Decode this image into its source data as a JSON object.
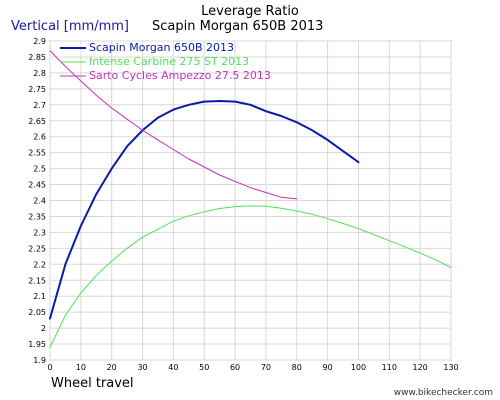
{
  "chart_data": {
    "type": "line",
    "title": "Leverage Ratio",
    "subtitle": "Scapin Morgan 650B 2013",
    "ylabel": "Vertical [mm/mm]",
    "xlabel": "Wheel travel",
    "watermark": "www.bikechecker.com",
    "xlim": [
      0,
      130
    ],
    "ylim": [
      1.9,
      2.9
    ],
    "x_ticks": [
      0,
      10,
      20,
      30,
      40,
      50,
      60,
      70,
      80,
      90,
      100,
      110,
      120,
      130
    ],
    "y_ticks": [
      1.9,
      1.95,
      2.0,
      2.05,
      2.1,
      2.15,
      2.2,
      2.25,
      2.3,
      2.35,
      2.4,
      2.45,
      2.5,
      2.55,
      2.6,
      2.65,
      2.7,
      2.75,
      2.8,
      2.85,
      2.9
    ],
    "y_tick_labels": [
      "1.9",
      "1.95",
      "2",
      "2.05",
      "2.1",
      "2.15",
      "2.2",
      "2.25",
      "2.3",
      "2.35",
      "2.4",
      "2.45",
      "2.5",
      "2.55",
      "2.6",
      "2.65",
      "2.7",
      "2.75",
      "2.8",
      "2.85",
      "2.9"
    ],
    "grid": true,
    "legend_position": "top-left",
    "series": [
      {
        "name": "Scapin Morgan 650B 2013",
        "color": "#0a1aa8",
        "width": 2,
        "x": [
          0,
          5,
          10,
          15,
          20,
          25,
          30,
          35,
          40,
          45,
          50,
          55,
          60,
          65,
          70,
          75,
          80,
          85,
          90,
          95,
          100
        ],
        "y": [
          2.03,
          2.2,
          2.32,
          2.42,
          2.5,
          2.57,
          2.62,
          2.66,
          2.685,
          2.7,
          2.71,
          2.712,
          2.71,
          2.7,
          2.68,
          2.665,
          2.645,
          2.62,
          2.59,
          2.555,
          2.52
        ]
      },
      {
        "name": "Intense Carbine 275 ST 2013",
        "color": "#55e055",
        "width": 1,
        "x": [
          0,
          5,
          10,
          15,
          20,
          25,
          30,
          35,
          40,
          45,
          50,
          55,
          60,
          65,
          70,
          75,
          80,
          85,
          90,
          95,
          100,
          105,
          110,
          115,
          120,
          125,
          130
        ],
        "y": [
          1.94,
          2.04,
          2.11,
          2.165,
          2.21,
          2.25,
          2.285,
          2.31,
          2.335,
          2.352,
          2.365,
          2.375,
          2.381,
          2.383,
          2.382,
          2.376,
          2.367,
          2.357,
          2.343,
          2.328,
          2.312,
          2.293,
          2.274,
          2.255,
          2.235,
          2.214,
          2.19
        ]
      },
      {
        "name": "Sarto Cycles Ampezzo 27.5 2013",
        "color": "#c032c0",
        "width": 1,
        "x": [
          0,
          5,
          10,
          15,
          20,
          25,
          30,
          35,
          40,
          45,
          50,
          55,
          60,
          65,
          70,
          75,
          80
        ],
        "y": [
          2.87,
          2.82,
          2.775,
          2.73,
          2.69,
          2.655,
          2.62,
          2.59,
          2.56,
          2.53,
          2.505,
          2.48,
          2.46,
          2.44,
          2.425,
          2.41,
          2.405
        ]
      }
    ]
  }
}
